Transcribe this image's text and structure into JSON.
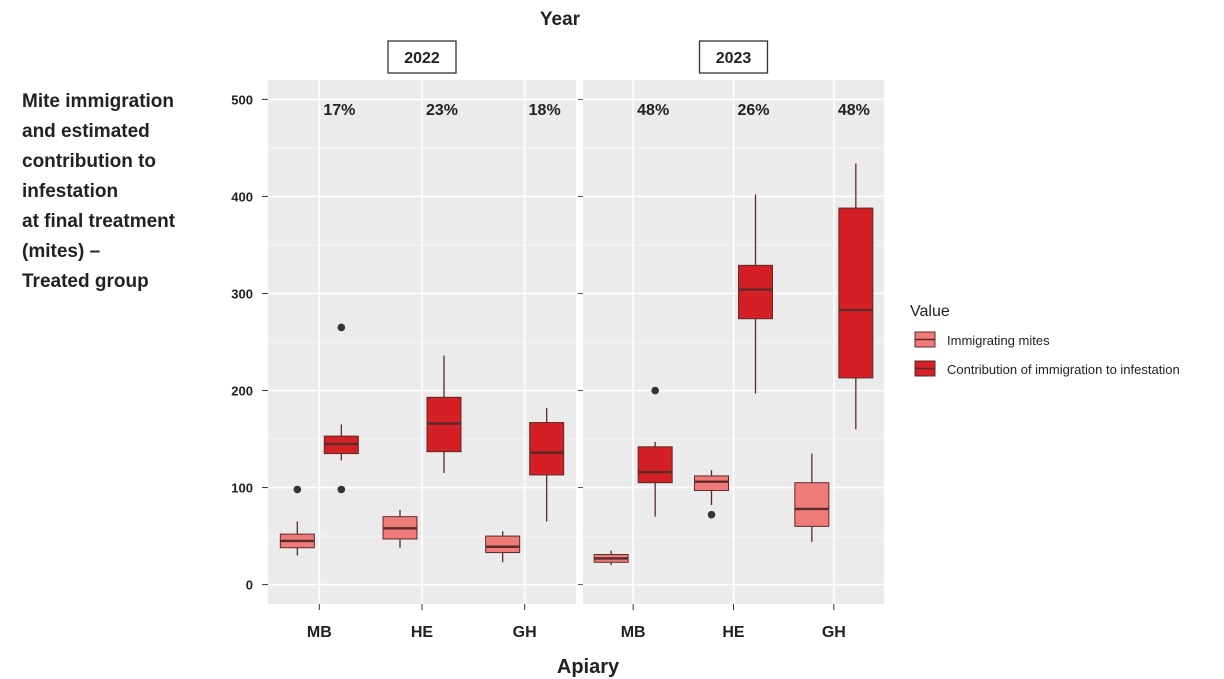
{
  "chart_data": {
    "type": "boxplot",
    "facet_title": "Year",
    "xlabel": "Apiary",
    "ylabel_lines": [
      "Mite immigration",
      "and estimated",
      "contribution to",
      "infestation",
      "at final treatment",
      "(mites) –",
      "Treated group"
    ],
    "ylim": [
      -20,
      520
    ],
    "yticks": [
      0,
      100,
      200,
      300,
      400,
      500
    ],
    "grid": true,
    "legend": {
      "title": "Value",
      "position": "right",
      "entries": [
        {
          "label": "Immigrating mites",
          "color": "#ef7b79"
        },
        {
          "label": "Contribution of immigration to infestation",
          "color": "#d42024"
        }
      ]
    },
    "categories": [
      "MB",
      "HE",
      "GH"
    ],
    "panels": [
      {
        "year": "2022",
        "percentages": [
          "17%",
          "23%",
          "18%"
        ],
        "groups": [
          {
            "apiary": "MB",
            "immigrating": {
              "min": 30,
              "q1": 38,
              "median": 45,
              "q3": 52,
              "max": 65,
              "outliers": [
                98
              ]
            },
            "contribution": {
              "min": 128,
              "q1": 135,
              "median": 145,
              "q3": 153,
              "max": 165,
              "outliers": [
                265,
                98
              ]
            }
          },
          {
            "apiary": "HE",
            "immigrating": {
              "min": 38,
              "q1": 47,
              "median": 58,
              "q3": 70,
              "max": 77,
              "outliers": []
            },
            "contribution": {
              "min": 115,
              "q1": 137,
              "median": 166,
              "q3": 193,
              "max": 236,
              "outliers": []
            }
          },
          {
            "apiary": "GH",
            "immigrating": {
              "min": 23,
              "q1": 33,
              "median": 39,
              "q3": 50,
              "max": 55,
              "outliers": []
            },
            "contribution": {
              "min": 65,
              "q1": 113,
              "median": 136,
              "q3": 167,
              "max": 182,
              "outliers": []
            }
          }
        ]
      },
      {
        "year": "2023",
        "percentages": [
          "48%",
          "26%",
          "48%"
        ],
        "groups": [
          {
            "apiary": "MB",
            "immigrating": {
              "min": 20,
              "q1": 23,
              "median": 27,
              "q3": 31,
              "max": 35,
              "outliers": []
            },
            "contribution": {
              "min": 70,
              "q1": 105,
              "median": 116,
              "q3": 142,
              "max": 147,
              "outliers": [
                200
              ]
            }
          },
          {
            "apiary": "HE",
            "immigrating": {
              "min": 82,
              "q1": 97,
              "median": 106,
              "q3": 112,
              "max": 118,
              "outliers": [
                72
              ]
            },
            "contribution": {
              "min": 197,
              "q1": 274,
              "median": 304,
              "q3": 329,
              "max": 402,
              "outliers": []
            }
          },
          {
            "apiary": "GH",
            "immigrating": {
              "min": 44,
              "q1": 60,
              "median": 78,
              "q3": 105,
              "max": 135,
              "outliers": []
            },
            "contribution": {
              "min": 160,
              "q1": 213,
              "median": 283,
              "q3": 388,
              "max": 434,
              "outliers": []
            }
          }
        ]
      }
    ]
  },
  "colors": {
    "panel_bg": "#ebebeb",
    "grid": "#ffffff",
    "immigrating": "#ef7b79",
    "contribution": "#d42024",
    "box_line": "#5a2a2a",
    "outlier": "#333333"
  }
}
